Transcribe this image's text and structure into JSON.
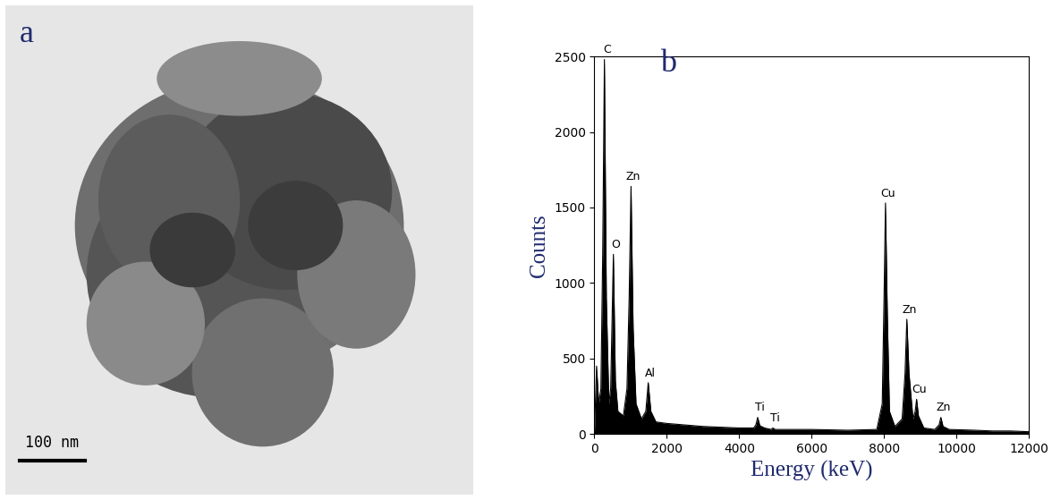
{
  "chart_data": [
    {
      "type": "image",
      "panel_label": "a",
      "scale_bar_label": "100 nm"
    },
    {
      "type": "line",
      "panel_label": "b",
      "x_label": "Energy (keV)",
      "y_label": "Counts",
      "x": [
        0,
        60,
        120,
        180,
        230,
        277,
        330,
        400,
        450,
        525,
        580,
        650,
        800,
        900,
        960,
        1012,
        1070,
        1150,
        1300,
        1420,
        1487,
        1560,
        1700,
        2000,
        2500,
        3000,
        3500,
        4000,
        4400,
        4460,
        4510,
        4570,
        4700,
        4880,
        4930,
        4990,
        5200,
        6000,
        7000,
        7800,
        7950,
        8000,
        8040,
        8090,
        8150,
        8300,
        8500,
        8580,
        8630,
        8690,
        8800,
        8860,
        8900,
        8950,
        9100,
        9400,
        9520,
        9570,
        9630,
        9800,
        10500,
        11000,
        11500,
        12000
      ],
      "values": [
        0,
        450,
        200,
        300,
        1200,
        2480,
        900,
        200,
        300,
        1190,
        350,
        150,
        120,
        300,
        900,
        1640,
        700,
        200,
        100,
        150,
        340,
        150,
        80,
        70,
        60,
        50,
        45,
        40,
        40,
        60,
        110,
        55,
        40,
        30,
        40,
        30,
        30,
        30,
        25,
        30,
        200,
        900,
        1530,
        800,
        150,
        50,
        100,
        400,
        760,
        400,
        100,
        150,
        230,
        120,
        40,
        30,
        60,
        110,
        50,
        30,
        25,
        20,
        20,
        15
      ],
      "color": "#000000",
      "xlim": [
        0,
        12000
      ],
      "xticks": [
        0,
        2000,
        4000,
        6000,
        8000,
        10000,
        12000
      ],
      "ylim": [
        0,
        2500
      ],
      "yticks": [
        0,
        500,
        1000,
        1500,
        2000,
        2500
      ],
      "annotations": [
        {
          "text": "C",
          "x": 277,
          "y": 2480
        },
        {
          "text": "O",
          "x": 525,
          "y": 1190
        },
        {
          "text": "Zn",
          "x": 1012,
          "y": 1640
        },
        {
          "text": "Al",
          "x": 1487,
          "y": 340
        },
        {
          "text": "Ti",
          "x": 4510,
          "y": 110
        },
        {
          "text": "Ti",
          "x": 4930,
          "y": 40
        },
        {
          "text": "Cu",
          "x": 8040,
          "y": 1530
        },
        {
          "text": "Zn",
          "x": 8630,
          "y": 760
        },
        {
          "text": "Cu",
          "x": 8900,
          "y": 230
        },
        {
          "text": "Zn",
          "x": 9570,
          "y": 110
        }
      ]
    }
  ]
}
